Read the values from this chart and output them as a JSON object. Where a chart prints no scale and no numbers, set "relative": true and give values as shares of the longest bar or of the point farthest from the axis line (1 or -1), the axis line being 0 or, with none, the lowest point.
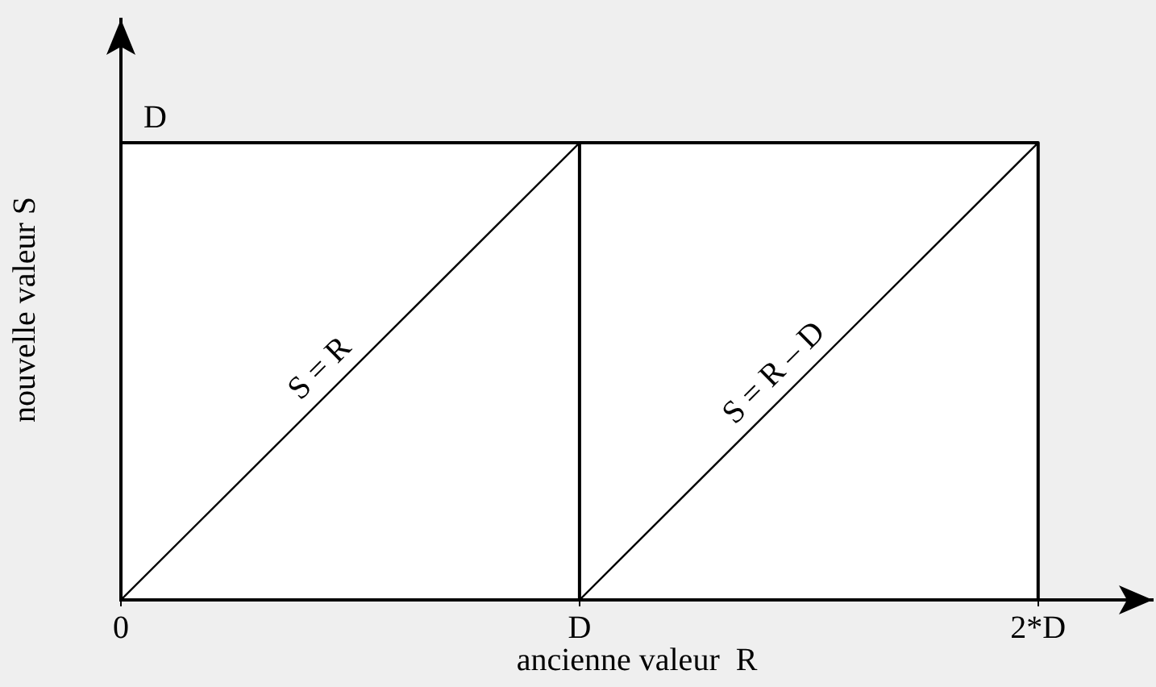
{
  "chart_data": {
    "type": "line",
    "relative": true,
    "xlabel": "ancienne valeur  R",
    "ylabel": "nouvelle valeur S",
    "xlim": [
      0,
      2.25
    ],
    "xticks": [
      0,
      {
        "value": 1,
        "label": "D"
      },
      {
        "value": 2,
        "label": "2*D"
      }
    ],
    "series": [
      {
        "color": "#000000",
        "x": [
          0,
          1
        ],
        "values": [
          0,
          1
        ]
      },
      {
        "color": "#000000",
        "x": [
          1,
          2
        ],
        "values": [
          0,
          1
        ]
      },
      {
        "color": "#000000",
        "x": [
          0,
          2,
          2,
          1,
          1
        ],
        "values": [
          1,
          1,
          0,
          0,
          1
        ]
      }
    ],
    "annotations": [
      {
        "text": "D",
        "x": 0,
        "y": 1
      },
      {
        "text": "S = R",
        "x": 0.47,
        "y": 0.47
      },
      {
        "text": "S = R – D",
        "x": 1.46,
        "y": 0.46
      }
    ]
  }
}
